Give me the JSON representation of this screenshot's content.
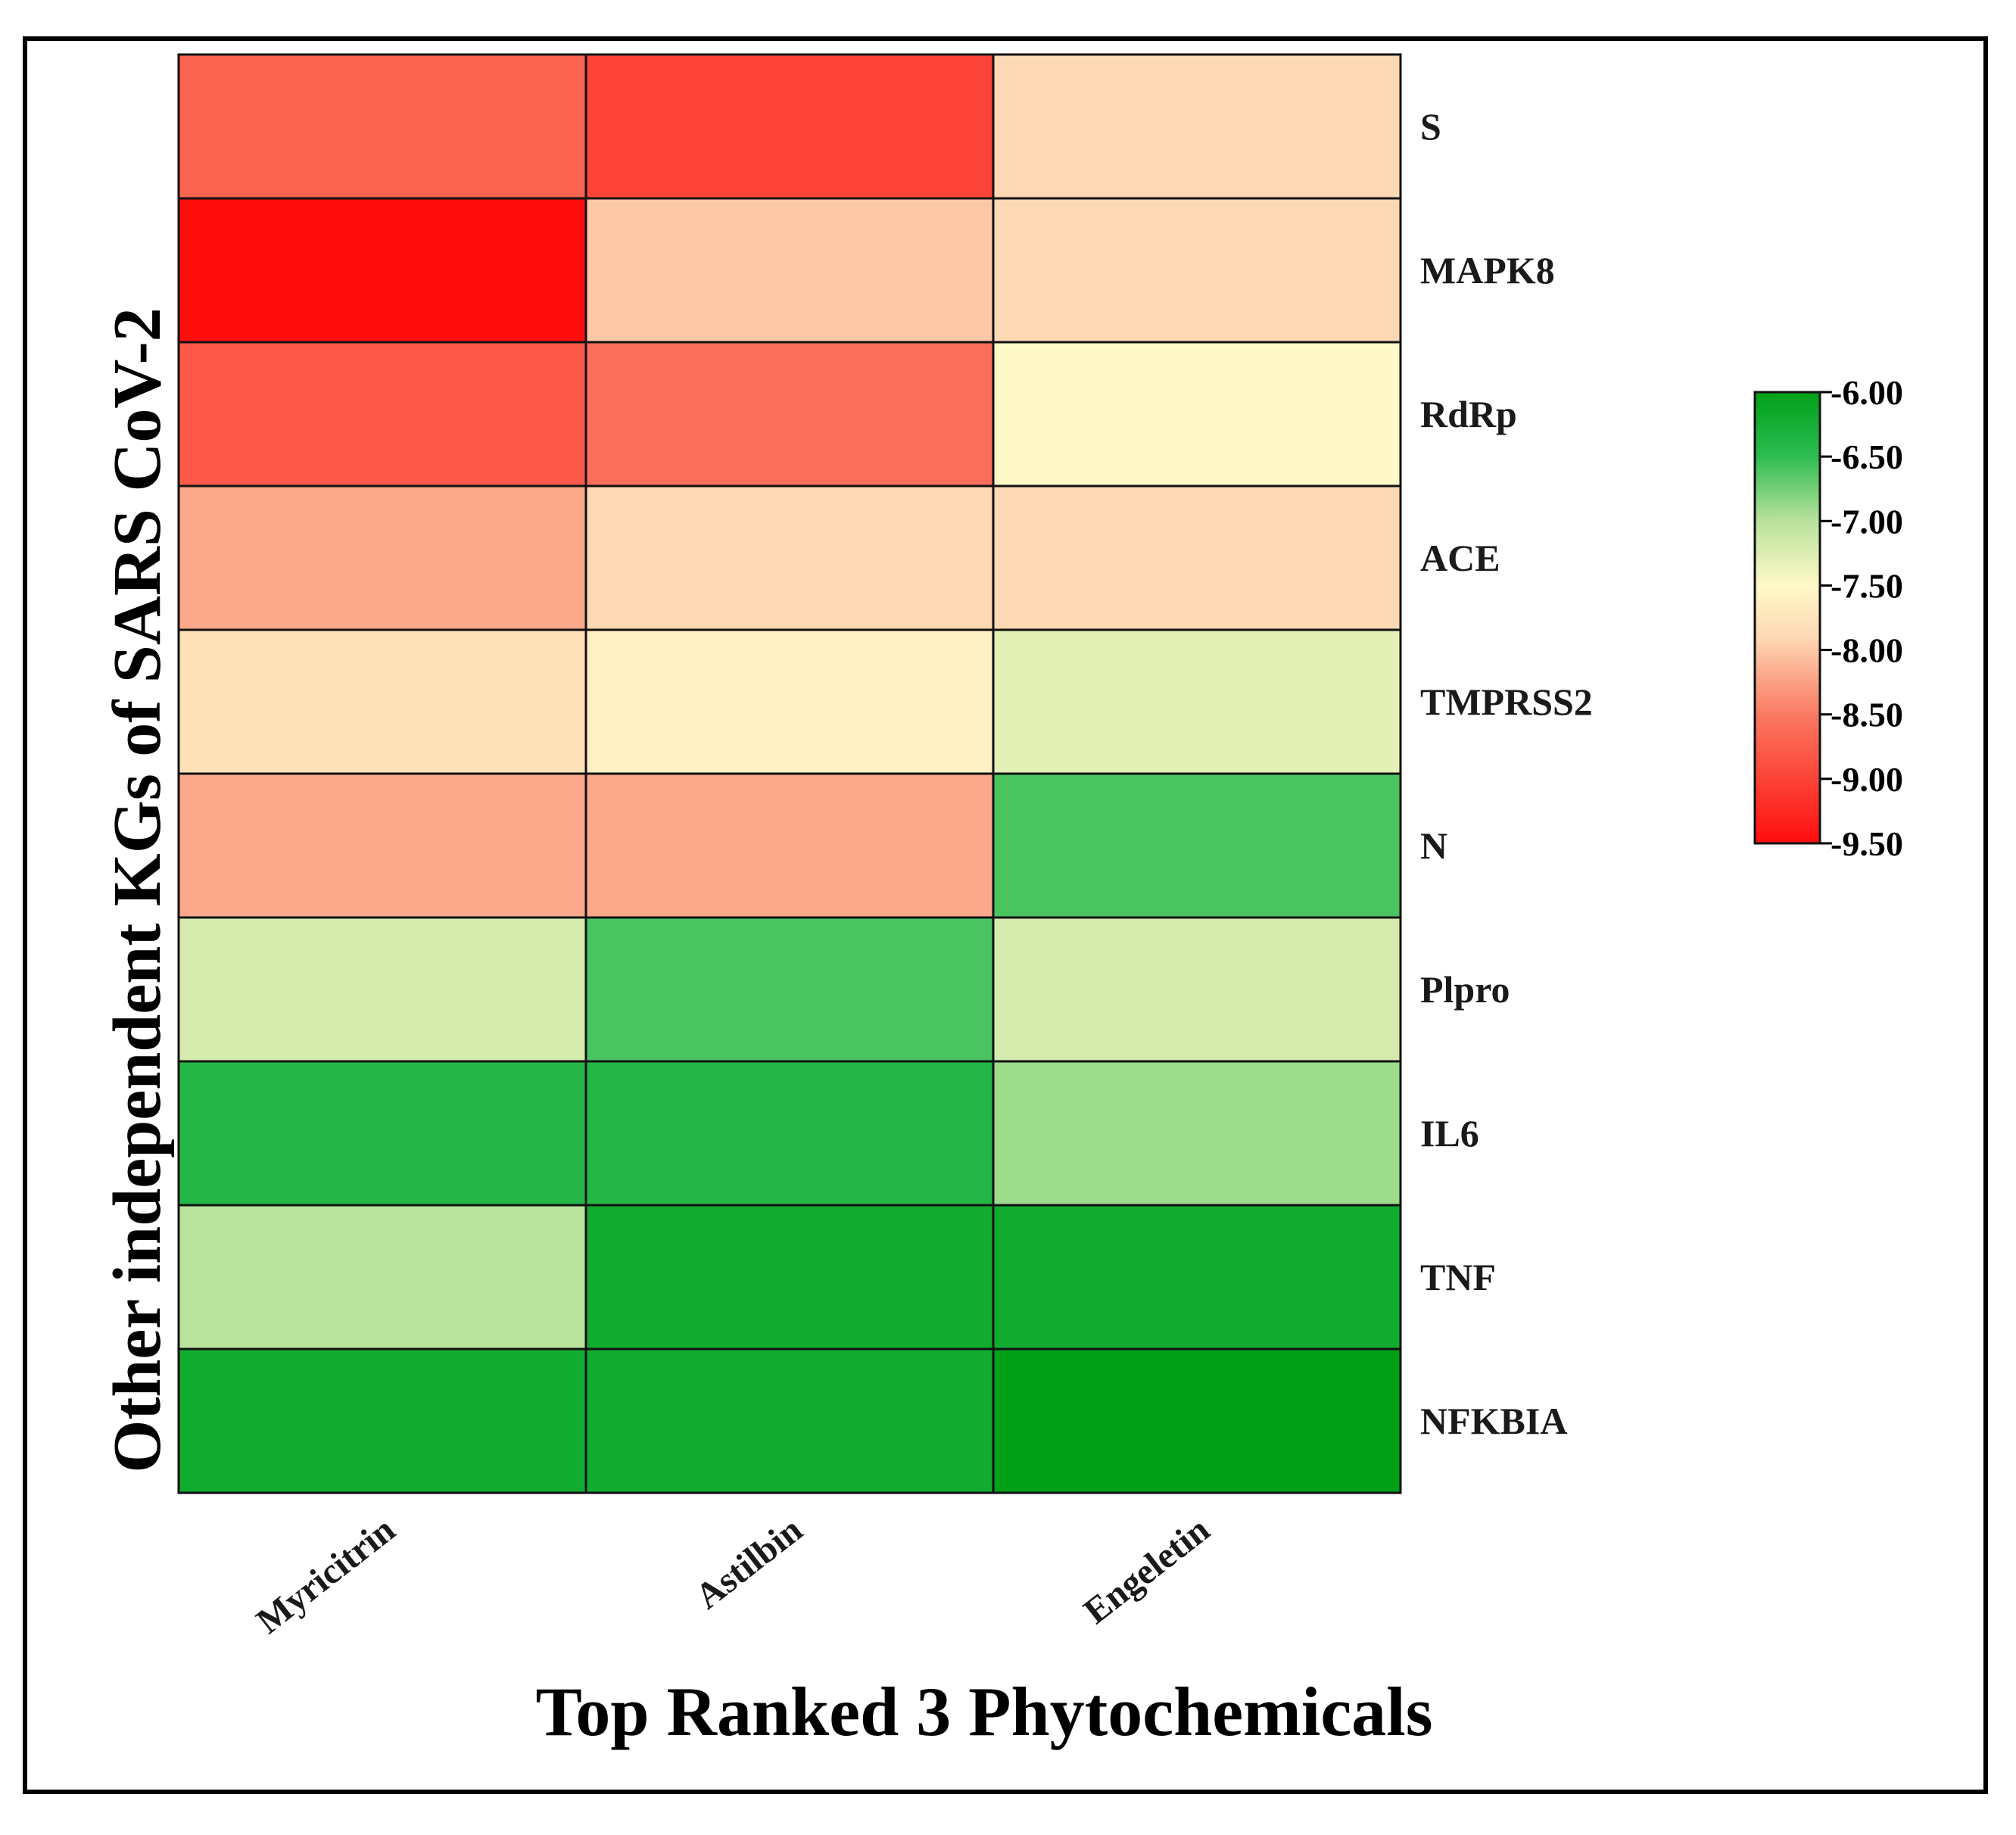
{
  "chart_data": {
    "type": "heatmap",
    "title": "",
    "xlabel": "Top Ranked 3 Phytochemicals",
    "ylabel": "Other independent KGs of SARS CoV-2",
    "columns": [
      "Myricitrin",
      "Astilbin",
      "Engeletin"
    ],
    "rows": [
      "S",
      "MAPK8",
      "RdRp",
      "ACE",
      "TMPRSS2",
      "N",
      "Plpro",
      "IL6",
      "TNF",
      "NFKBIA"
    ],
    "values": [
      [
        -8.7,
        -9.0,
        -7.9
      ],
      [
        -9.5,
        -8.0,
        -7.9
      ],
      [
        -8.8,
        -8.6,
        -7.5
      ],
      [
        -8.2,
        -7.9,
        -7.9
      ],
      [
        -7.8,
        -7.6,
        -7.3
      ],
      [
        -8.2,
        -8.2,
        -6.6
      ],
      [
        -7.2,
        -6.6,
        -7.2
      ],
      [
        -6.4,
        -6.4,
        -6.9
      ],
      [
        -7.0,
        -6.2,
        -6.2
      ],
      [
        -6.2,
        -6.2,
        -6.0
      ]
    ],
    "colorbar": {
      "min": -9.5,
      "max": -6.0,
      "ticks": [
        "-6.00",
        "-6.50",
        "-7.00",
        "-7.50",
        "-8.00",
        "-8.50",
        "-9.00",
        "-9.50"
      ],
      "tick_values": [
        -6.0,
        -6.5,
        -7.0,
        -7.5,
        -8.0,
        -8.5,
        -9.0,
        -9.5
      ],
      "stops": [
        {
          "value": -9.5,
          "color": "#ff0d0d"
        },
        {
          "value": -8.5,
          "color": "#fa7a62"
        },
        {
          "value": -7.9,
          "color": "#fdd8b4"
        },
        {
          "value": -7.5,
          "color": "#fff9c8"
        },
        {
          "value": -7.0,
          "color": "#b9e29c"
        },
        {
          "value": -6.5,
          "color": "#2dbd52"
        },
        {
          "value": -6.0,
          "color": "#00a019"
        }
      ],
      "position": "right"
    },
    "grid": true
  }
}
